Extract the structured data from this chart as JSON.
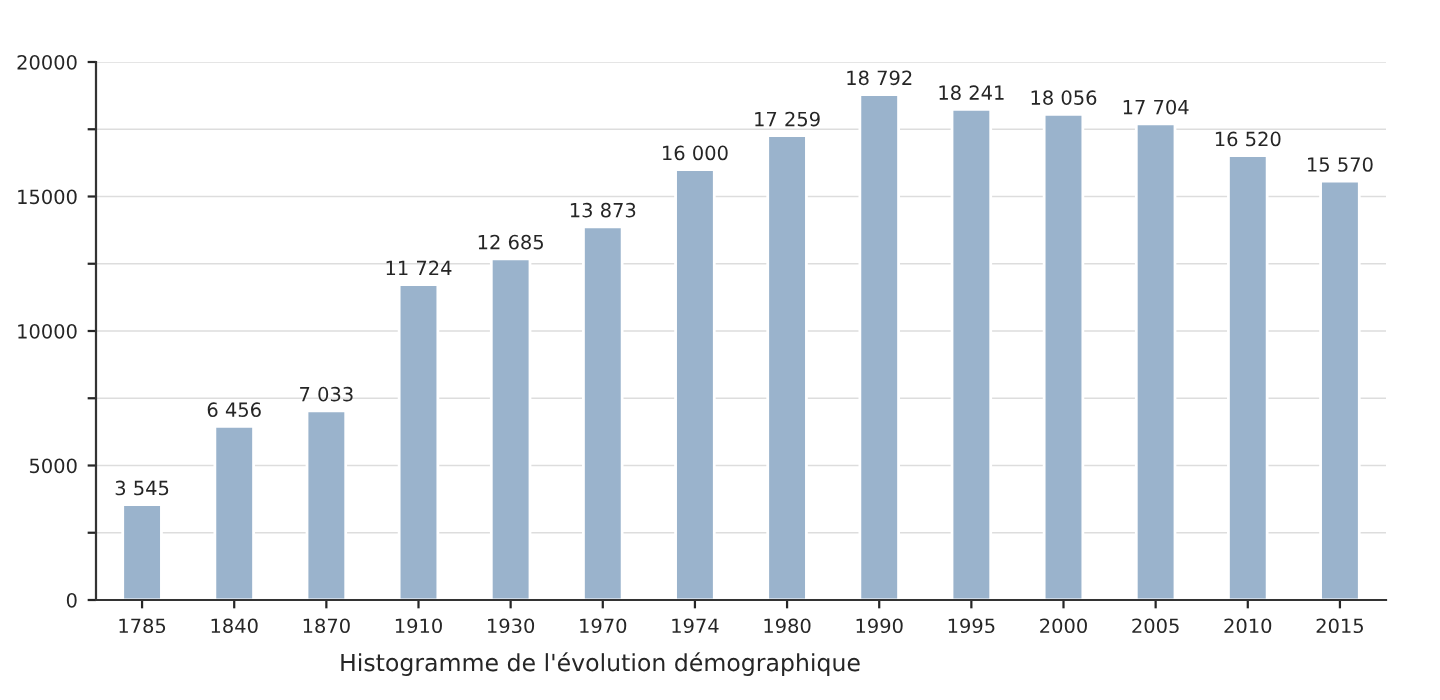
{
  "chart_data": {
    "type": "bar",
    "categories": [
      "1785",
      "1840",
      "1870",
      "1910",
      "1930",
      "1970",
      "1974",
      "1980",
      "1990",
      "1995",
      "2000",
      "2005",
      "2010",
      "2015"
    ],
    "values": [
      3545,
      6456,
      7033,
      11724,
      12685,
      13873,
      16000,
      17259,
      18792,
      18241,
      18056,
      17704,
      16520,
      15570
    ],
    "value_labels": [
      "3 545",
      "6 456",
      "7 033",
      "11 724",
      "12 685",
      "13 873",
      "16 000",
      "17 259",
      "18 792",
      "18 241",
      "18 056",
      "17 704",
      "16 520",
      "15 570"
    ],
    "color": "#9ab3cc",
    "ylim": [
      0,
      20000
    ],
    "yticks": [
      0,
      {
        "value": 2500,
        "label": null
      },
      5000,
      {
        "value": 7500,
        "label": null
      },
      10000,
      {
        "value": 12500,
        "label": null
      },
      15000,
      {
        "value": 17500,
        "label": null
      },
      20000
    ],
    "grid": "y",
    "annotations": [
      "Histogramme de l'évolution démographique"
    ]
  }
}
